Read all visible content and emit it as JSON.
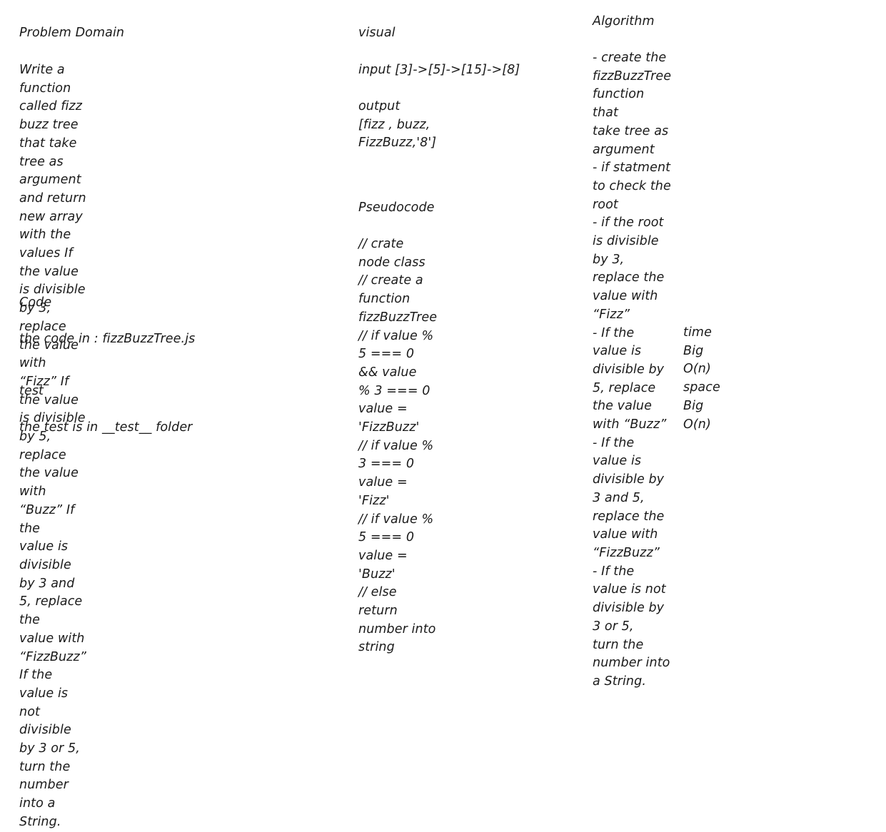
{
  "left": {
    "problem_domain_heading": "Problem Domain",
    "problem_domain_text": "Write a function called fizz buzz tree\nthat take tree as argument and return\nnew array with the values If the value\nis divisible by 3, replace the value with\n“Fizz” If the value is divisible by 5,\nreplace the value with “Buzz” If the\nvalue is divisible by 3 and 5, replace the\nvalue with “FizzBuzz” If the value is\nnot divisible by 3 or 5, turn the number\ninto a String.",
    "code_heading": "Code",
    "code_text": "the code in : fizzBuzzTree.js",
    "test_heading": "test",
    "test_text": "the test is in __test__ folder"
  },
  "middle": {
    "visual_heading": "visual",
    "input_text": "input [3]->[5]->[15]->[8]",
    "output_text": "output\n[fizz , buzz, FizzBuzz,'8']",
    "pseudocode_heading": "Pseudocode",
    "pseudocode_text": "// crate node class\n// create a function\nfizzBuzzTree\n// if value % 5 === 0 && value\n% 3 === 0 value = 'FizzBuzz'\n// if value % 3 === 0 value =\n'Fizz'\n// if value % 5 === 0 value =\n'Buzz'\n// else return number into\nstring"
  },
  "right": {
    "algorithm_heading": "Algorithm",
    "algorithm_text": "- create the fizzBuzzTree function that\ntake tree as argument\n- if statment to check the root\n- if the root is divisible by 3, replace the\nvalue with “Fizz”\n- If the value is divisible by 5, replace\nthe value with “Buzz”\n- If the value is divisible by 3 and 5,\nreplace the value with “FizzBuzz”\n- If the value is not divisible by 3 or 5,\nturn the number into a String.",
    "complexity_text": "time Big O(n)\nspace Big O(n)"
  }
}
